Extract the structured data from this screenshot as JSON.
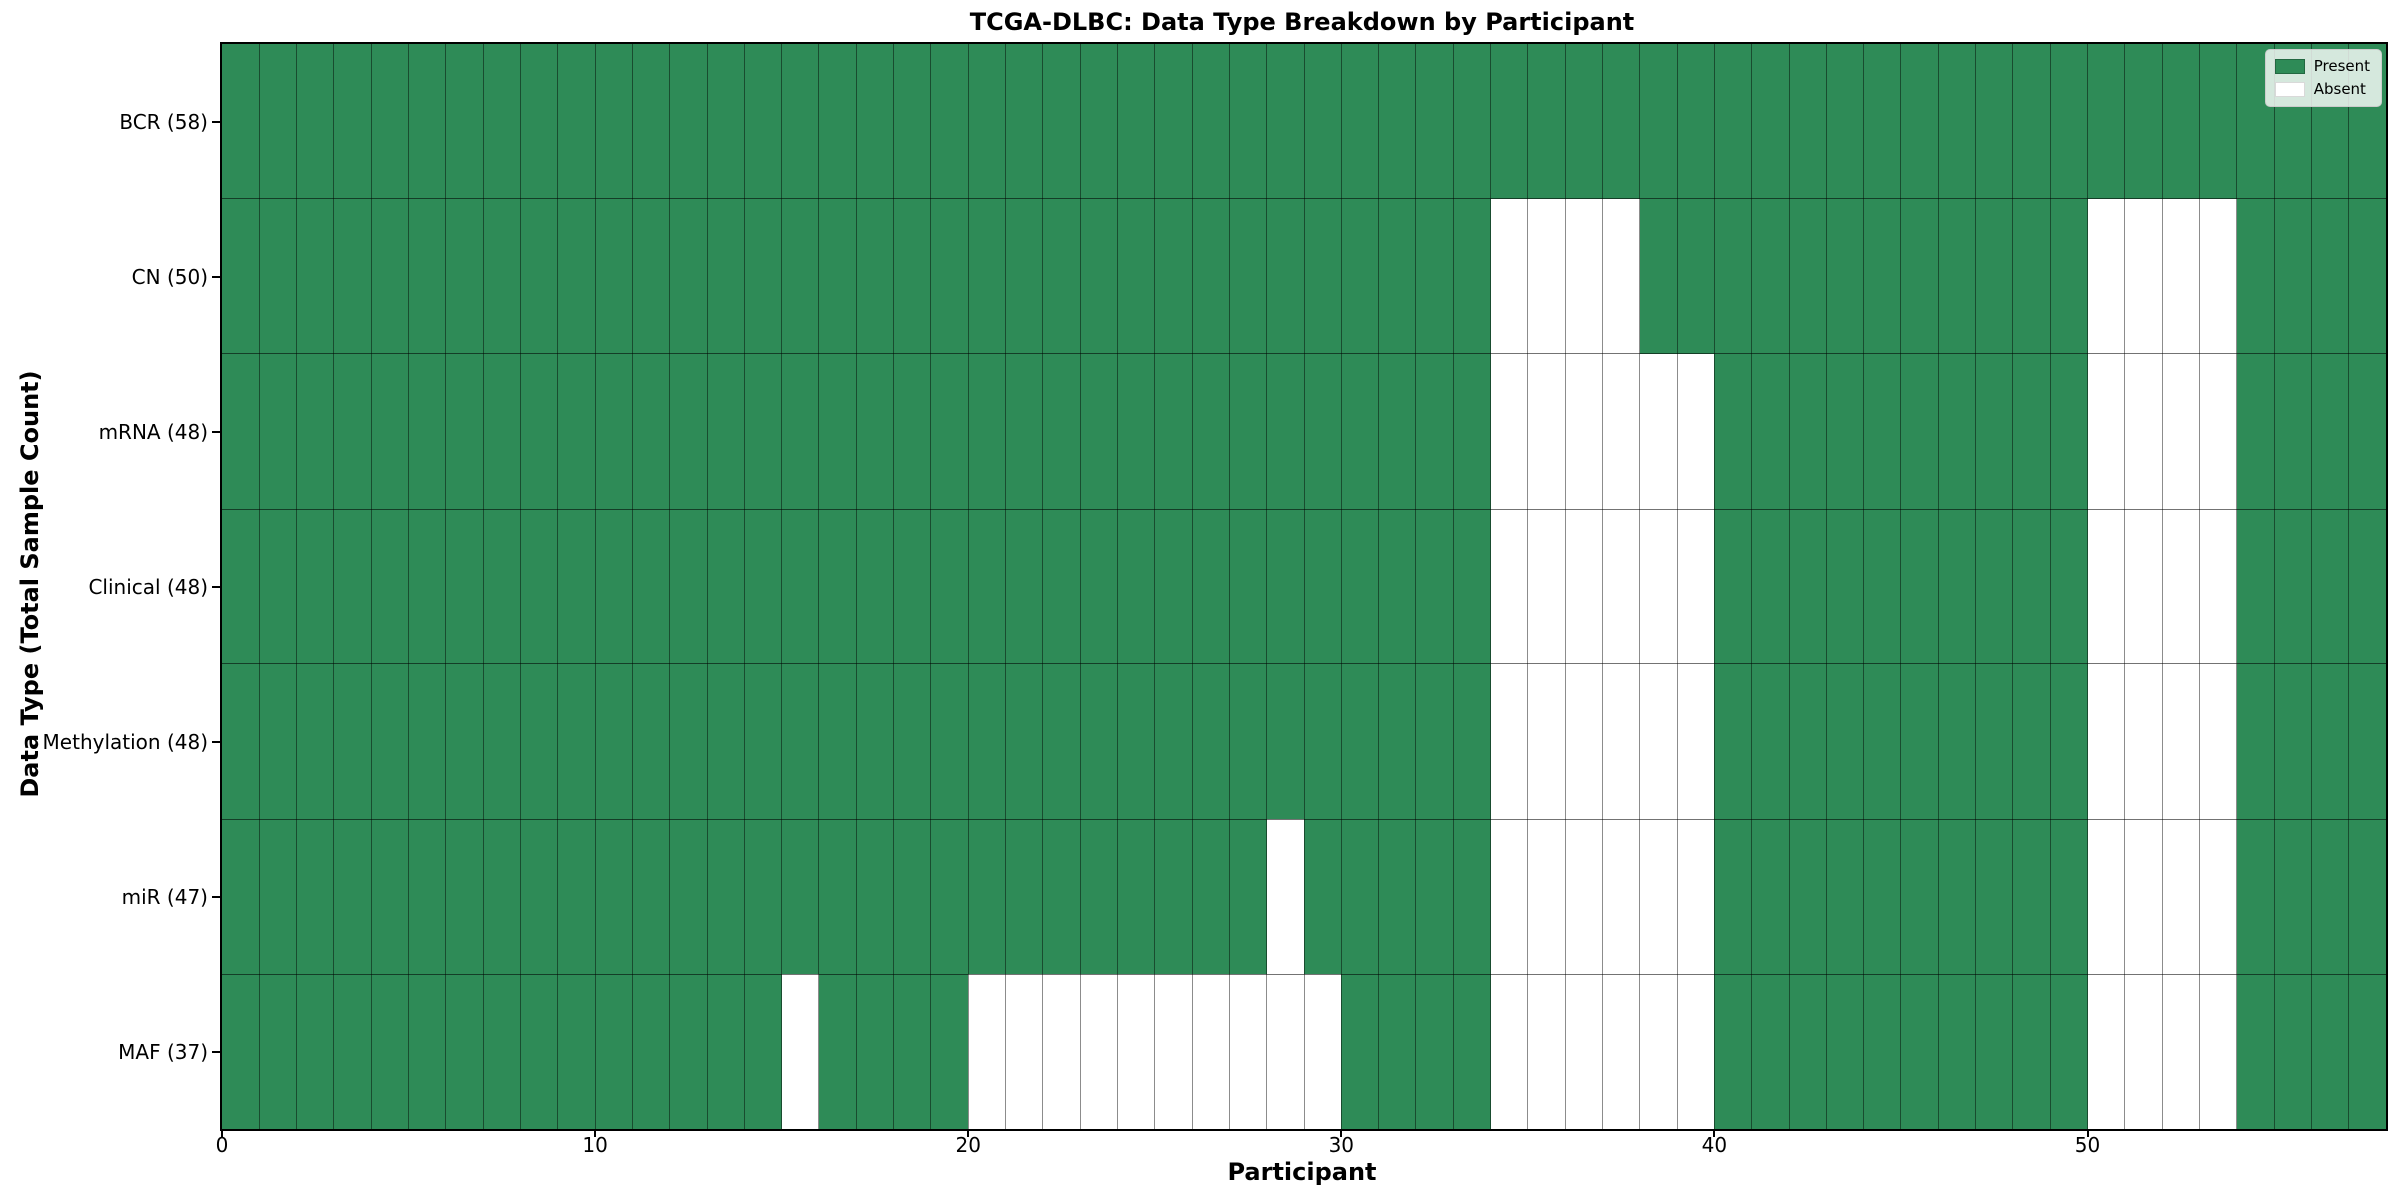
{
  "chart_data": {
    "type": "heatmap",
    "title": "TCGA-DLBC: Data Type Breakdown by Participant",
    "xlabel": "Participant",
    "ylabel": "Data Type (Total Sample Count)",
    "x_ticks": [
      0,
      10,
      20,
      30,
      40,
      50
    ],
    "x_range": [
      0,
      58
    ],
    "n_participants": 58,
    "grid": true,
    "legend_position": "upper right",
    "legend": [
      {
        "label": "Present",
        "color": "#2e8b57"
      },
      {
        "label": "Absent",
        "color": "#ffffff"
      }
    ],
    "rows": [
      {
        "label": "BCR (58)",
        "data_type": "BCR",
        "total_samples": 58,
        "absent_participants": []
      },
      {
        "label": "CN (50)",
        "data_type": "CN",
        "total_samples": 50,
        "absent_participants": [
          34,
          35,
          36,
          37,
          50,
          51,
          52,
          53
        ]
      },
      {
        "label": "mRNA (48)",
        "data_type": "mRNA",
        "total_samples": 48,
        "absent_participants": [
          34,
          35,
          36,
          37,
          38,
          39,
          50,
          51,
          52,
          53
        ]
      },
      {
        "label": "Clinical (48)",
        "data_type": "Clinical",
        "total_samples": 48,
        "absent_participants": [
          34,
          35,
          36,
          37,
          38,
          39,
          50,
          51,
          52,
          53
        ]
      },
      {
        "label": "Methylation (48)",
        "data_type": "Methylation",
        "total_samples": 48,
        "absent_participants": [
          34,
          35,
          36,
          37,
          38,
          39,
          50,
          51,
          52,
          53
        ]
      },
      {
        "label": "miR (47)",
        "data_type": "miR",
        "total_samples": 47,
        "absent_participants": [
          28,
          34,
          35,
          36,
          37,
          38,
          39,
          50,
          51,
          52,
          53
        ]
      },
      {
        "label": "MAF (37)",
        "data_type": "MAF",
        "total_samples": 37,
        "absent_participants": [
          15,
          20,
          21,
          22,
          23,
          24,
          25,
          26,
          27,
          28,
          29,
          34,
          35,
          36,
          37,
          38,
          39,
          50,
          51,
          52,
          53
        ]
      }
    ],
    "colors": {
      "present": "#2e8b57",
      "absent": "#ffffff",
      "grid_line": "rgba(0,0,0,0.45)",
      "spine": "#000000"
    }
  }
}
